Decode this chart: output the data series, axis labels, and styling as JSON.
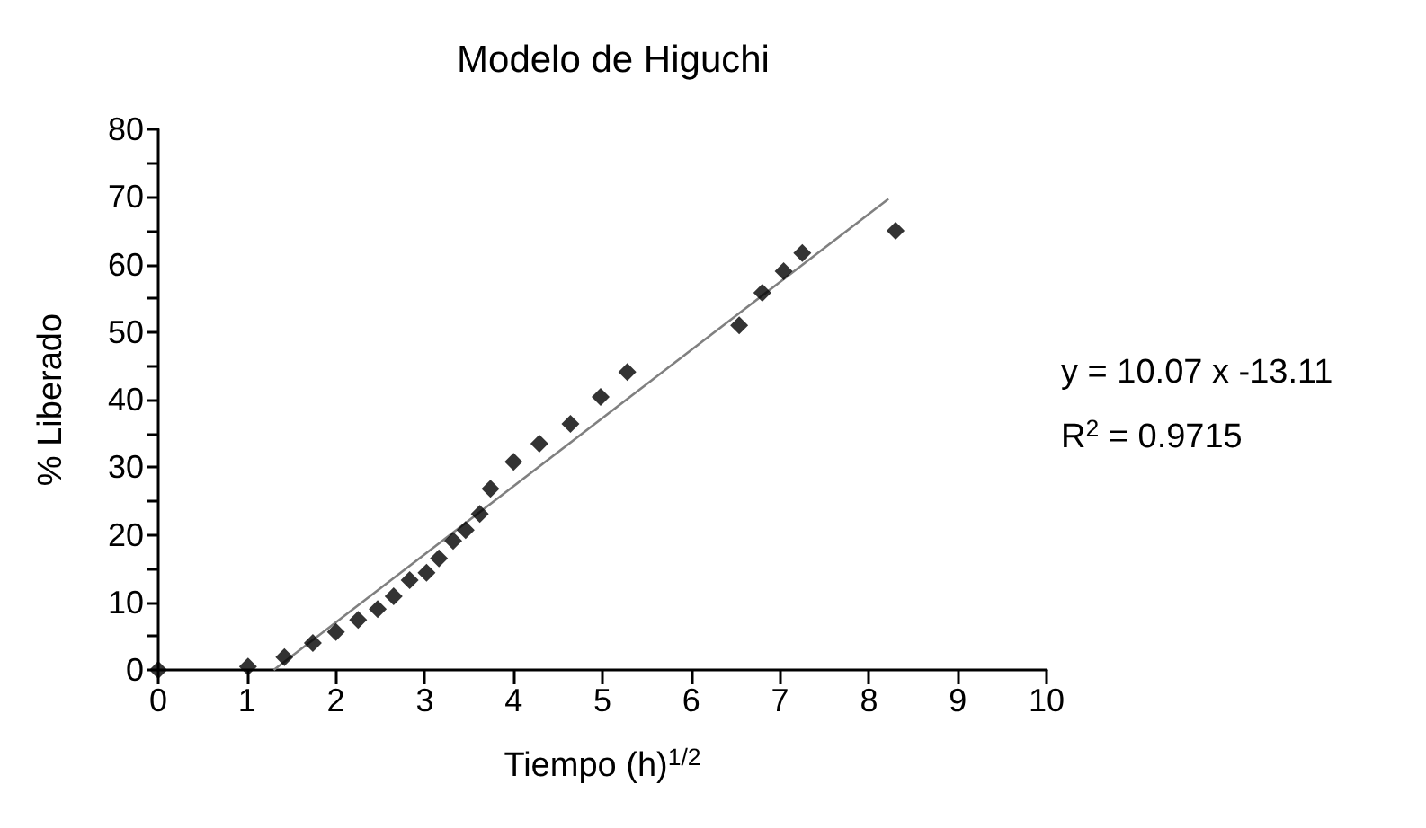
{
  "chart_data": {
    "type": "scatter",
    "title": "Modelo de Higuchi",
    "xlabel": "Tiempo (h)$^{1/2}$",
    "ylabel": "% Liberado",
    "series": [
      {
        "color": "#000000",
        "marker": "diamond",
        "x": [
          0,
          1.01,
          1.42,
          1.74,
          2.0,
          2.25,
          2.47,
          2.65,
          2.83,
          3.02,
          3.16,
          3.32,
          3.46,
          3.62,
          3.74,
          4.0,
          4.29,
          4.64,
          4.98,
          5.28,
          6.54,
          6.8,
          7.04,
          7.25,
          8.3
        ],
        "values": [
          0,
          0.5,
          1.9,
          4.0,
          5.6,
          7.4,
          9.0,
          10.9,
          13.3,
          14.4,
          16.5,
          19.1,
          20.7,
          23.1,
          26.8,
          30.8,
          33.5,
          36.4,
          40.4,
          44.1,
          51.0,
          55.8,
          59.0,
          61.7,
          65.0
        ]
      },
      {
        "type": "line",
        "color": "#808080",
        "marker": "none",
        "line_style": "solid",
        "x": [
          1.3,
          8.22
        ],
        "values": [
          0,
          69.7
        ]
      }
    ],
    "xlim": [
      0,
      10
    ],
    "xticks": [
      0,
      1,
      2,
      3,
      4,
      5,
      6,
      7,
      8,
      9,
      10
    ],
    "ylim": [
      0,
      80
    ],
    "yticks": [
      0,
      {
        "value": 5,
        "label": null
      },
      10,
      {
        "value": 15,
        "label": null
      },
      20,
      {
        "value": 25,
        "label": null
      },
      30,
      {
        "value": 35,
        "label": null
      },
      40,
      {
        "value": 45,
        "label": null
      },
      50,
      {
        "value": 55,
        "label": null
      },
      60,
      {
        "value": 65,
        "label": null
      },
      70,
      {
        "value": 75,
        "label": null
      },
      80
    ],
    "grid": false,
    "annotations": [
      "y = 10.07 x -13.11",
      "R$^{2}$ = 0.9715"
    ]
  }
}
